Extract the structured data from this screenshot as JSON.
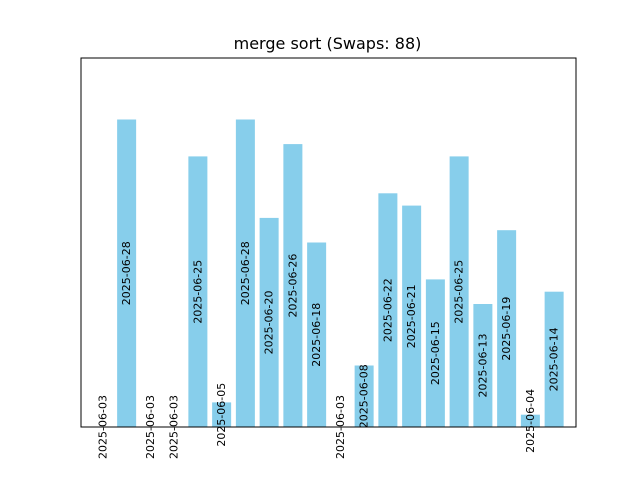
{
  "chart_data": {
    "type": "bar",
    "title": "merge sort (Swaps: 88)",
    "xlabel": "",
    "ylabel": "",
    "grid": false,
    "legend": "none",
    "bar_color": "#87ceeb",
    "categories": [
      "2025-06-03",
      "2025-06-28",
      "2025-06-03",
      "2025-06-03",
      "2025-06-25",
      "2025-06-05",
      "2025-06-28",
      "2025-06-20",
      "2025-06-26",
      "2025-06-18",
      "2025-06-03",
      "2025-06-08",
      "2025-06-22",
      "2025-06-21",
      "2025-06-15",
      "2025-06-25",
      "2025-06-13",
      "2025-06-19",
      "2025-06-04",
      "2025-06-14"
    ],
    "values": [
      0,
      25,
      0,
      0,
      22,
      2,
      25,
      17,
      23,
      15,
      0,
      5,
      19,
      18,
      12,
      22,
      10,
      16,
      1,
      11
    ],
    "ylim": [
      0,
      30
    ]
  }
}
